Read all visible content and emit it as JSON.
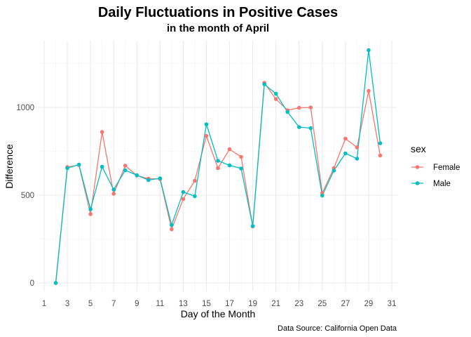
{
  "chart_data": {
    "type": "line",
    "title": "Daily Fluctuations in Positive Cases",
    "subtitle": "in the month of April",
    "xlabel": "Day of the Month",
    "ylabel": "Difference",
    "caption": "Data Source: California Open Data",
    "xlim": [
      1,
      31
    ],
    "ylim": [
      0,
      1350
    ],
    "x_ticks": [
      1,
      3,
      5,
      7,
      9,
      11,
      13,
      15,
      17,
      19,
      21,
      23,
      25,
      27,
      29,
      31
    ],
    "y_ticks": [
      0,
      500,
      1000
    ],
    "grid": true,
    "legend": {
      "title": "sex",
      "placement": "right",
      "entries": [
        "Female",
        "Male"
      ]
    },
    "x": [
      2,
      3,
      4,
      5,
      6,
      7,
      8,
      9,
      10,
      11,
      12,
      13,
      14,
      15,
      16,
      17,
      18,
      19,
      20,
      21,
      22,
      23,
      24,
      25,
      26,
      27,
      28,
      29,
      30
    ],
    "series": [
      {
        "name": "Female",
        "color": "#F8766D",
        "values": [
          0,
          660,
          672,
          392,
          860,
          508,
          668,
          612,
          594,
          592,
          306,
          478,
          582,
          838,
          654,
          762,
          718,
          322,
          1140,
          1048,
          984,
          998,
          1000,
          512,
          654,
          822,
          772,
          1094,
          726
        ]
      },
      {
        "name": "Male",
        "color": "#00BFC4",
        "values": [
          0,
          654,
          674,
          420,
          662,
          532,
          642,
          614,
          586,
          596,
          330,
          518,
          494,
          904,
          696,
          670,
          652,
          324,
          1132,
          1078,
          974,
          888,
          882,
          498,
          640,
          738,
          708,
          1326,
          796
        ]
      }
    ]
  }
}
